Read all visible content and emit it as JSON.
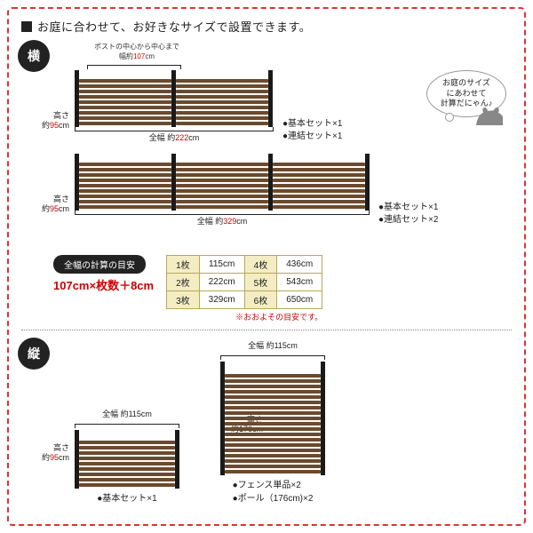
{
  "title": "お庭に合わせて、お好きなサイズで設置できます。",
  "badges": {
    "horizontal": "横",
    "vertical": "縦"
  },
  "bubble": {
    "l1": "お庭のサイズ",
    "l2": "にあわせて",
    "l3": "計算だにゃん♪"
  },
  "post_note_l1": "ポストの中心から中心まで",
  "post_note_l2p": "幅約",
  "post_note_l2v": "107",
  "post_note_l2s": "cm",
  "height_l1": "高さ",
  "height_l2p": "約",
  "height_l2v": "95",
  "height_l2s": "cm",
  "height_176_l2p": "約",
  "height_176_v": "176",
  "height_176_s": "cm",
  "total_w_222_p": "全幅 約",
  "total_w_222_v": "222",
  "total_w_222_s": "cm",
  "total_w_329_p": "全幅 約",
  "total_w_329_v": "329",
  "total_w_329_s": "cm",
  "total_w_115": "全幅 約115cm",
  "bullets_2": {
    "a": "●基本セット×1",
    "b": "●連結セット×1"
  },
  "bullets_3": {
    "a": "●基本セット×1",
    "b": "●連結セット×2"
  },
  "calc_badge": "全幅の計算の目安",
  "calc_formula": "107cm×枚数＋8cm",
  "table": {
    "r1": [
      "1枚",
      "115cm",
      "4枚",
      "436cm"
    ],
    "r2": [
      "2枚",
      "222cm",
      "5枚",
      "543cm"
    ],
    "r3": [
      "3枚",
      "329cm",
      "6枚",
      "650cm"
    ]
  },
  "approx": "※おおよその目安です。",
  "vleft_b": "●基本セット×1",
  "vright_b1": "●フェンス単品×2",
  "vright_b2": "●ポール（176cm)×2",
  "colors": {
    "wood": "#6b4a2d",
    "post": "#1a1a1a",
    "red": "#c00"
  }
}
